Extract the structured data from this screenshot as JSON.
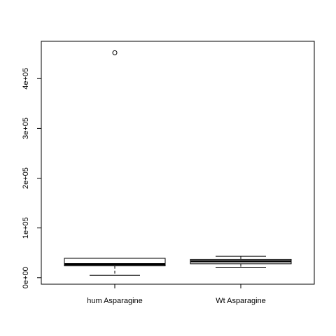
{
  "chart_data": {
    "type": "box",
    "title": "",
    "xlabel": "",
    "ylabel": "",
    "ylim": [
      -13000,
      475000
    ],
    "y_ticks": [
      {
        "value": 0,
        "label": "0e+00"
      },
      {
        "value": 100000,
        "label": "1e+05"
      },
      {
        "value": 200000,
        "label": "2e+05"
      },
      {
        "value": 300000,
        "label": "3e+05"
      },
      {
        "value": 400000,
        "label": "4e+05"
      }
    ],
    "grid": false,
    "categories": [
      "hum Asparagine",
      "Wt Asparagine"
    ],
    "boxes": [
      {
        "name": "hum Asparagine",
        "whisker_low": 5000,
        "q1": 24000,
        "median": 27000,
        "q3": 39000,
        "whisker_high": 39000,
        "outliers": [
          452000
        ]
      },
      {
        "name": "Wt Asparagine",
        "whisker_low": 20000,
        "q1": 28000,
        "median": 33000,
        "q3": 37000,
        "whisker_high": 43000,
        "outliers": []
      }
    ]
  }
}
